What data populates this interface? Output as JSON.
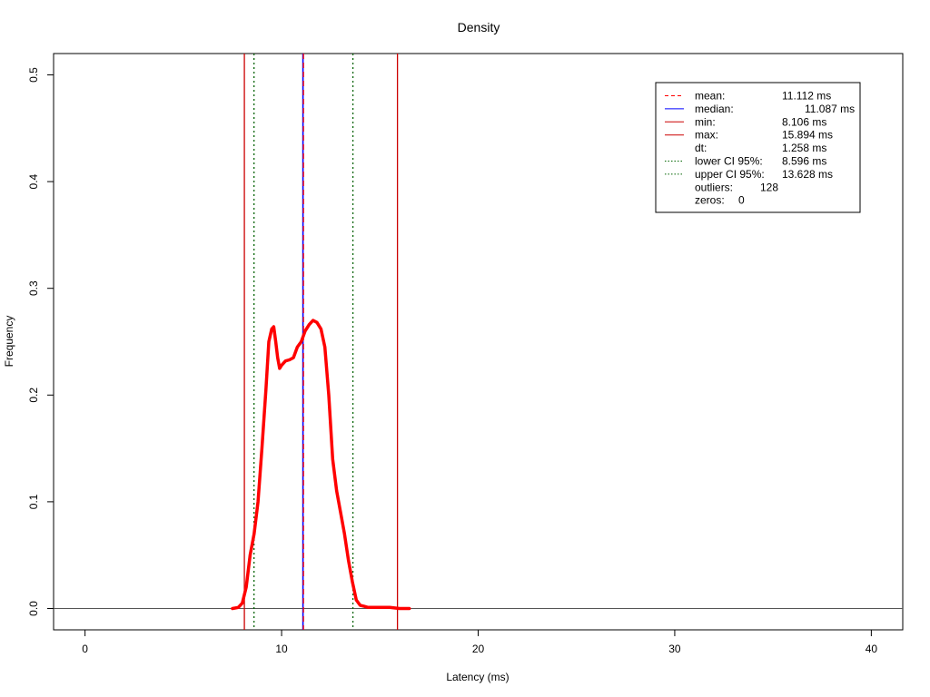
{
  "chart_data": {
    "type": "line",
    "title": "Density",
    "xlabel": "Latency (ms)",
    "ylabel": "Frequency",
    "xlim": [
      -1.6,
      41.6
    ],
    "ylim": [
      -0.02,
      0.52
    ],
    "xticks": [
      0,
      10,
      20,
      30,
      40
    ],
    "yticks": [
      0.0,
      0.1,
      0.2,
      0.3,
      0.4,
      0.5
    ],
    "xtick_labels": [
      "0",
      "10",
      "20",
      "30",
      "40"
    ],
    "ytick_labels": [
      "0.0",
      "0.1",
      "0.2",
      "0.3",
      "0.4",
      "0.5"
    ],
    "grid": false,
    "legend_position": "top-right",
    "baseline": 0,
    "series": [
      {
        "color": "#ff0000",
        "x": [
          7.5,
          7.8,
          8.0,
          8.2,
          8.4,
          8.6,
          8.8,
          9.0,
          9.2,
          9.35,
          9.5,
          9.6,
          9.7,
          9.8,
          9.9,
          10.0,
          10.2,
          10.4,
          10.6,
          10.8,
          11.0,
          11.2,
          11.4,
          11.6,
          11.8,
          12.0,
          12.2,
          12.4,
          12.6,
          12.8,
          13.0,
          13.2,
          13.4,
          13.6,
          13.8,
          14.0,
          14.2,
          14.4,
          14.7,
          15.0,
          15.5,
          16.0,
          16.5
        ],
        "y": [
          0.0,
          0.001,
          0.005,
          0.02,
          0.05,
          0.07,
          0.1,
          0.15,
          0.205,
          0.25,
          0.262,
          0.264,
          0.25,
          0.235,
          0.225,
          0.228,
          0.232,
          0.233,
          0.235,
          0.245,
          0.25,
          0.26,
          0.266,
          0.27,
          0.268,
          0.262,
          0.245,
          0.2,
          0.14,
          0.11,
          0.09,
          0.07,
          0.045,
          0.025,
          0.008,
          0.003,
          0.002,
          0.001,
          0.001,
          0.001,
          0.001,
          0.0,
          0.0
        ]
      }
    ],
    "vlines": [
      {
        "name": "mean",
        "x": 11.112,
        "color": "#ff0000",
        "style": "dashed"
      },
      {
        "name": "median",
        "x": 11.087,
        "color": "#0000ff",
        "style": "solid"
      },
      {
        "name": "min",
        "x": 8.106,
        "color": "#cc0000",
        "style": "solid"
      },
      {
        "name": "max",
        "x": 15.894,
        "color": "#cc0000",
        "style": "solid"
      },
      {
        "name": "lower CI 95%",
        "x": 8.596,
        "color": "#006400",
        "style": "dotted"
      },
      {
        "name": "upper CI 95%",
        "x": 13.628,
        "color": "#006400",
        "style": "dotted"
      }
    ],
    "legend": [
      {
        "label": "mean:",
        "value": "11.112 ms",
        "color": "#ff0000",
        "style": "dashed"
      },
      {
        "label": "median:",
        "value": "11.087 ms",
        "color": "#0000ff",
        "style": "solid"
      },
      {
        "label": "min:",
        "value": "8.106 ms",
        "color": "#cc0000",
        "style": "solid"
      },
      {
        "label": "max:",
        "value": "15.894 ms",
        "color": "#cc0000",
        "style": "solid"
      },
      {
        "label": "dt:",
        "value": "1.258 ms",
        "color": "",
        "style": "none"
      },
      {
        "label": "lower CI 95%:",
        "value": "8.596 ms",
        "color": "#006400",
        "style": "dotted"
      },
      {
        "label": "upper CI 95%:",
        "value": "13.628 ms",
        "color": "#006400",
        "style": "dotted"
      },
      {
        "label": "outliers:",
        "value": "128",
        "color": "",
        "style": "none"
      },
      {
        "label": "zeros:",
        "value": "0",
        "color": "",
        "style": "none"
      }
    ]
  }
}
